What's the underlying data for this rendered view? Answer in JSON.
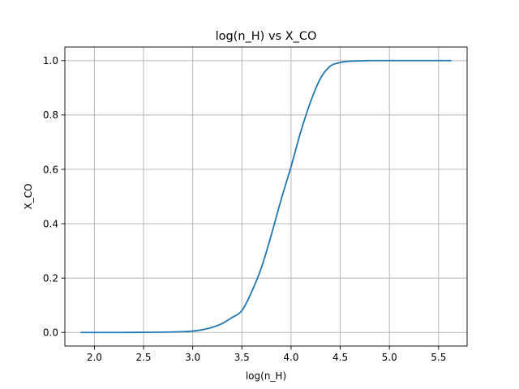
{
  "chart_data": {
    "type": "line",
    "title": "log(n_H) vs X_CO",
    "xlabel": "log(n_H)",
    "ylabel": "X_CO",
    "xlim": [
      1.7,
      5.79
    ],
    "ylim": [
      -0.05,
      1.05
    ],
    "xticks": [
      2.0,
      2.5,
      3.0,
      3.5,
      4.0,
      4.5,
      5.0,
      5.5
    ],
    "xtick_labels": [
      "2.0",
      "2.5",
      "3.0",
      "3.5",
      "4.0",
      "4.5",
      "5.0",
      "5.5"
    ],
    "yticks": [
      0.0,
      0.2,
      0.4,
      0.6,
      0.8,
      1.0
    ],
    "ytick_labels": [
      "0.0",
      "0.2",
      "0.4",
      "0.6",
      "0.8",
      "1.0"
    ],
    "grid": true,
    "series": [
      {
        "color": "#1f77b4",
        "x": [
          1.86,
          2.0,
          2.25,
          2.5,
          2.75,
          2.9,
          3.0,
          3.1,
          3.2,
          3.3,
          3.4,
          3.5,
          3.6,
          3.7,
          3.8,
          3.9,
          4.0,
          4.1,
          4.2,
          4.3,
          4.4,
          4.5,
          4.6,
          4.7,
          4.8,
          5.0,
          5.25,
          5.5,
          5.63
        ],
        "y": [
          0.0,
          0.0,
          0.0,
          0.0005,
          0.0015,
          0.003,
          0.005,
          0.01,
          0.019,
          0.033,
          0.055,
          0.08,
          0.15,
          0.24,
          0.36,
          0.49,
          0.61,
          0.74,
          0.85,
          0.935,
          0.98,
          0.993,
          0.998,
          0.999,
          1.0,
          1.0,
          1.0,
          1.0,
          1.0
        ]
      }
    ]
  }
}
